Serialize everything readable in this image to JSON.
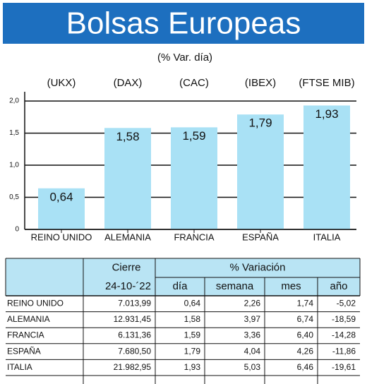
{
  "chart_data": {
    "type": "bar",
    "title": "Bolsas Europeas",
    "subtitle": "(% Var. día)",
    "categories": [
      "REINO UNIDO",
      "ALEMANIA",
      "FRANCIA",
      "ESPAÑA",
      "ITALIA"
    ],
    "index_names": [
      "(UKX)",
      "(DAX)",
      "(CAC)",
      "(IBEX)",
      "(FTSE MIB)"
    ],
    "values": [
      0.64,
      1.58,
      1.59,
      1.79,
      1.93
    ],
    "value_labels": [
      "0,64",
      "1,58",
      "1,59",
      "1,79",
      "1,93"
    ],
    "color": "#a9e1f5",
    "ylim": [
      0,
      2.1
    ],
    "yticks": [
      0,
      {
        "value": 0.5,
        "label": "0,5"
      },
      {
        "value": 1,
        "label": "1,0"
      },
      {
        "value": 1.5,
        "label": "1,5"
      },
      {
        "value": 2,
        "label": "2,0"
      }
    ],
    "grid": true
  },
  "table": {
    "header": [
      "Cierre",
      "% Variación"
    ],
    "subheader": [
      "24-10-´22",
      "día",
      "semana",
      "mes",
      "año"
    ],
    "rows": [
      [
        "REINO UNIDO",
        "7.013,99",
        "0,64",
        "2,26",
        "1,74",
        "-5,02"
      ],
      [
        "ALEMANIA",
        "12.931,45",
        "1,58",
        "3,97",
        "6,74",
        "-18,59"
      ],
      [
        "FRANCIA",
        "6.131,36",
        "1,59",
        "3,36",
        "6,40",
        "-14,28"
      ],
      [
        "ESPAÑA",
        "7.680,50",
        "1,79",
        "4,04",
        "4,26",
        "-11,86"
      ],
      [
        "ITALIA",
        "21.982,95",
        "1,93",
        "5,03",
        "6,46",
        "-19,61"
      ]
    ]
  }
}
